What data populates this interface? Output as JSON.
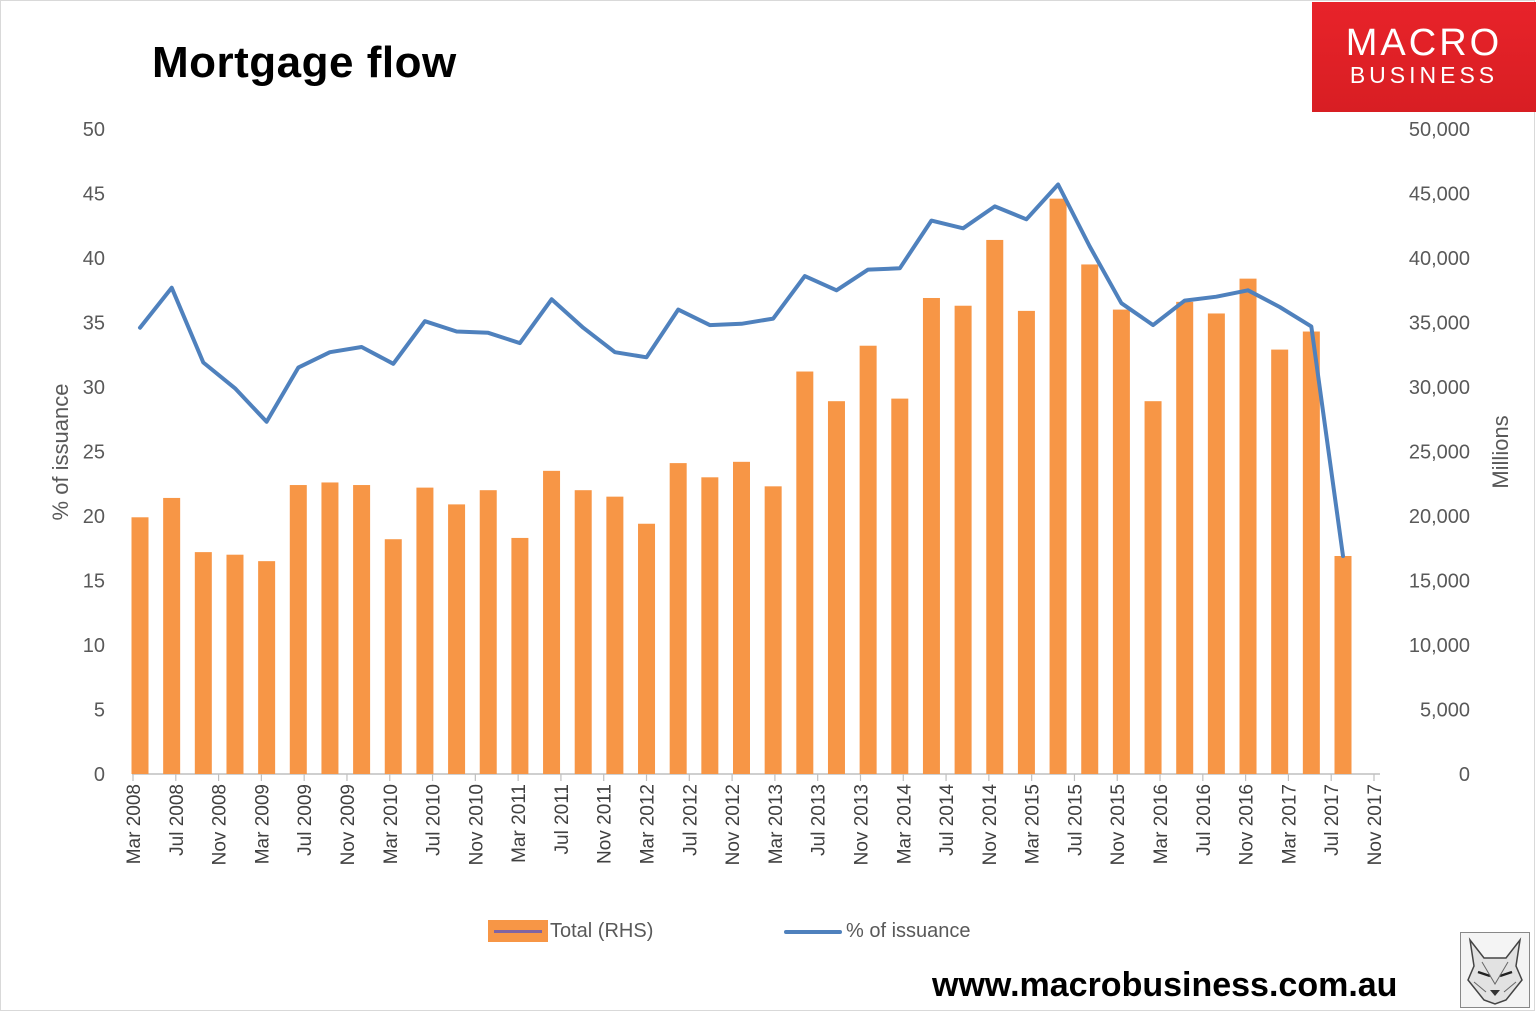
{
  "title": "Mortgage flow",
  "logo": {
    "line1": "MACRO",
    "line2": "BUSINESS"
  },
  "website": "www.macrobusiness.com.au",
  "colors": {
    "bars": "#f79646",
    "line": "#4f81bd",
    "logo_red": "#e8232a",
    "axis_text": "#595959"
  },
  "icons": {
    "logo": "macrobusiness-logo",
    "mascot": "wolf-sketch-icon"
  },
  "chart_data": {
    "type": "bar+line",
    "title": "Mortgage flow",
    "y_left_label": "% of issuance",
    "y_right_label": "Millions",
    "y_left_range": [
      0,
      50
    ],
    "y_right_range": [
      0,
      50000
    ],
    "y_left_ticks": [
      "0",
      "5",
      "10",
      "15",
      "20",
      "25",
      "30",
      "35",
      "40",
      "45",
      "50"
    ],
    "y_right_ticks": [
      "0",
      "5,000",
      "10,000",
      "15,000",
      "20,000",
      "25,000",
      "30,000",
      "35,000",
      "40,000",
      "45,000",
      "50,000"
    ],
    "x_tick_labels": [
      "Mar 2008",
      "Jul 2008",
      "Nov 2008",
      "Mar 2009",
      "Jul 2009",
      "Nov 2009",
      "Mar 2010",
      "Jul 2010",
      "Nov 2010",
      "Mar 2011",
      "Jul 2011",
      "Nov 2011",
      "Mar 2012",
      "Jul 2012",
      "Nov 2012",
      "Mar 2013",
      "Jul 2013",
      "Nov 2013",
      "Mar 2014",
      "Jul 2014",
      "Nov 2014",
      "Mar 2015",
      "Jul 2015",
      "Nov 2015",
      "Mar 2016",
      "Jul 2016",
      "Nov 2016",
      "Mar 2017",
      "Jul 2017",
      "Nov 2017"
    ],
    "grid": false,
    "legend_position": "bottom",
    "series": [
      {
        "name": "Total (RHS)",
        "type": "bar",
        "axis": "right",
        "values": [
          19900,
          21400,
          17200,
          17000,
          16500,
          22400,
          22600,
          22400,
          18200,
          22200,
          20900,
          22000,
          18300,
          23500,
          22000,
          21500,
          19400,
          24100,
          23000,
          24200,
          22300,
          31200,
          28900,
          33200,
          29100,
          36900,
          36300,
          41400,
          35900,
          44600,
          39500,
          36000,
          28900,
          36600,
          35700,
          38400,
          32900,
          34300,
          16900
        ]
      },
      {
        "name": "% of issuance",
        "type": "line",
        "axis": "left",
        "values": [
          34.6,
          37.7,
          31.9,
          29.9,
          27.3,
          31.5,
          32.7,
          33.1,
          31.8,
          35.1,
          34.3,
          34.2,
          33.4,
          36.8,
          34.6,
          32.7,
          32.3,
          36.0,
          34.8,
          34.9,
          35.3,
          38.6,
          37.5,
          39.1,
          39.2,
          42.9,
          42.3,
          44.0,
          43.0,
          45.7,
          40.9,
          36.5,
          34.8,
          36.7,
          37.0,
          37.5,
          36.2,
          34.7,
          16.9
        ]
      }
    ]
  }
}
